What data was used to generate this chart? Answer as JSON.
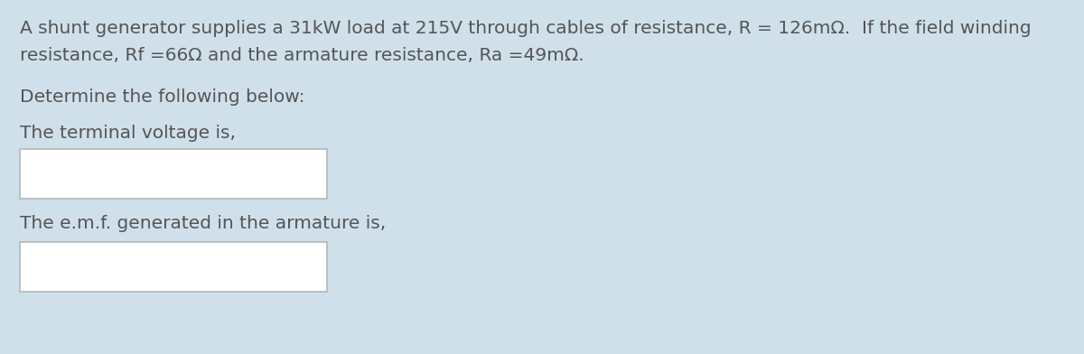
{
  "background_color": "#cfe0ea",
  "line1": "A shunt generator supplies a 31kW load at 215V through cables of resistance, R = 126mΩ.  If the field winding",
  "line2": "resistance, Rf =66Ω and the armature resistance, Ra =49mΩ.",
  "line3": "Determine the following below:",
  "line4": "The terminal voltage is,",
  "line5": "The e.m.f. generated in the armature is,",
  "box_facecolor": "#ffffff",
  "box_edgecolor": "#b0b8bc",
  "text_color": "#555555",
  "font_size": 14.5,
  "fig_width": 12.0,
  "fig_height": 3.92,
  "dpi": 100
}
